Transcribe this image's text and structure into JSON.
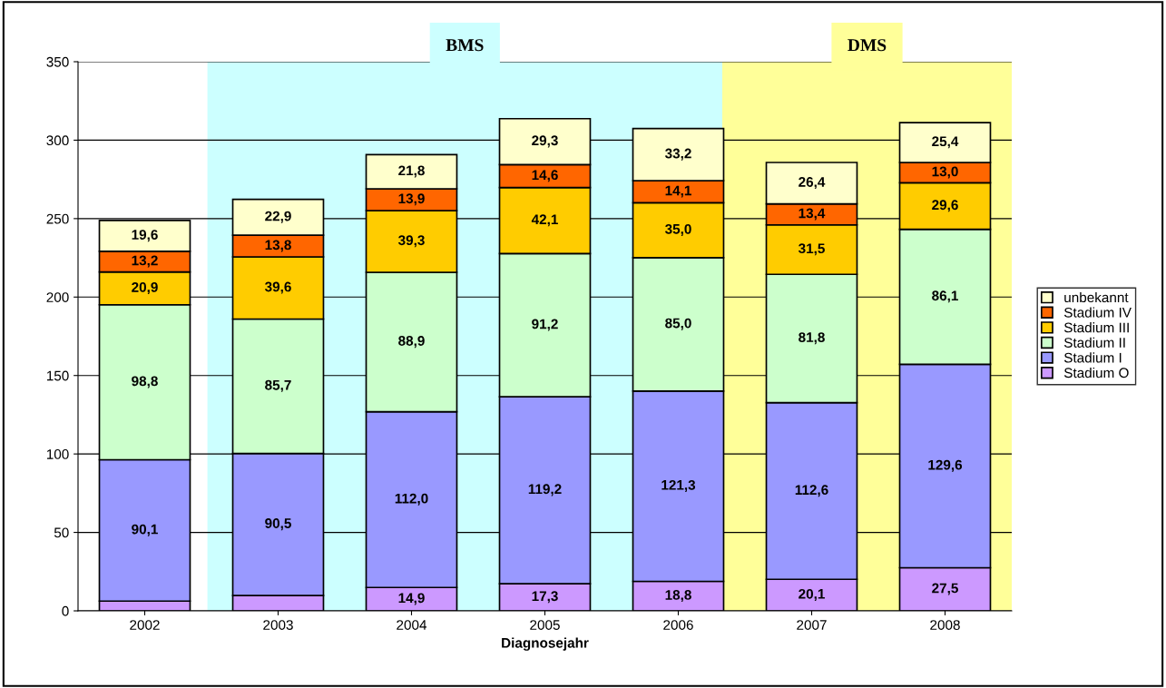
{
  "chart_data": {
    "type": "bar",
    "stacked": true,
    "xlabel": "Diagnosejahr",
    "categories": [
      "2002",
      "2003",
      "2004",
      "2005",
      "2006",
      "2007",
      "2008"
    ],
    "series": [
      {
        "name": "Stadium O",
        "color": "#cc99ff",
        "values": [
          6.2,
          9.8,
          14.9,
          17.3,
          18.8,
          20.1,
          27.5
        ],
        "value_labels": [
          null,
          null,
          "14,9",
          "17,3",
          "18,8",
          "20,1",
          "27,5"
        ]
      },
      {
        "name": "Stadium I",
        "color": "#9999ff",
        "values": [
          90.1,
          90.5,
          112.0,
          119.2,
          121.3,
          112.6,
          129.6
        ],
        "value_labels": [
          "90,1",
          "90,5",
          "112,0",
          "119,2",
          "121,3",
          "112,6",
          "129,6"
        ]
      },
      {
        "name": "Stadium II",
        "color": "#ccffcc",
        "values": [
          98.8,
          85.7,
          88.9,
          91.2,
          85.0,
          81.8,
          86.1
        ],
        "value_labels": [
          "98,8",
          "85,7",
          "88,9",
          "91,2",
          "85,0",
          "81,8",
          "86,1"
        ]
      },
      {
        "name": "Stadium III",
        "color": "#ffcc00",
        "values": [
          20.9,
          39.6,
          39.3,
          42.1,
          35.0,
          31.5,
          29.6
        ],
        "value_labels": [
          "20,9",
          "39,6",
          "39,3",
          "42,1",
          "35,0",
          "31,5",
          "29,6"
        ]
      },
      {
        "name": "Stadium IV",
        "color": "#ff6600",
        "values": [
          13.2,
          13.8,
          13.9,
          14.6,
          14.1,
          13.4,
          13.0
        ],
        "value_labels": [
          "13,2",
          "13,8",
          "13,9",
          "14,6",
          "14,1",
          "13,4",
          "13,0"
        ]
      },
      {
        "name": "unbekannt",
        "color": "#ffffcc",
        "values": [
          19.6,
          22.9,
          21.8,
          29.3,
          33.2,
          26.4,
          25.4
        ],
        "value_labels": [
          "19,6",
          "22,9",
          "21,8",
          "29,3",
          "33,2",
          "26,4",
          "25,4"
        ]
      }
    ],
    "bands": [
      {
        "axis": "x",
        "from": "2003",
        "to": "2006",
        "label": "BMS",
        "color": "#ccffff"
      },
      {
        "axis": "x",
        "from": "2006",
        "to": "2008",
        "label": "DMS",
        "color": "#ffff99"
      }
    ],
    "ylim": [
      0,
      350
    ],
    "yticks": [
      0,
      50,
      100,
      150,
      200,
      250,
      300,
      350
    ],
    "grid": "y",
    "legend": "right"
  }
}
